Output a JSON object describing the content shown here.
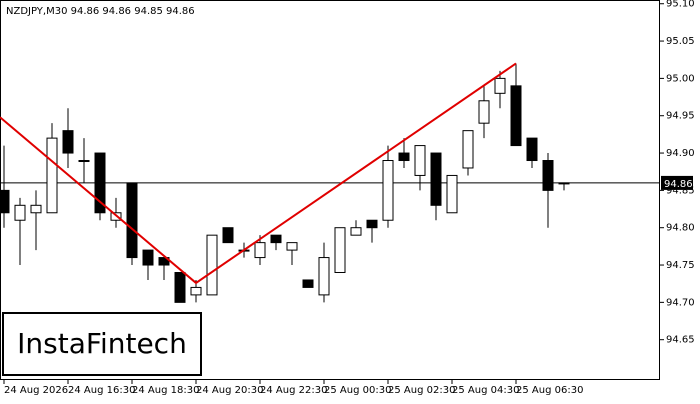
{
  "chart_data": {
    "type": "candlestick",
    "title": "NZDJPY,M30  94.86 94.86 94.85 94.86",
    "watermark": "InstaFintech",
    "categories": [
      "24 Aug 2026",
      null,
      null,
      null,
      "24 Aug 16:30",
      null,
      null,
      null,
      "24 Aug 18:30",
      null,
      null,
      null,
      "24 Aug 20:30",
      null,
      null,
      null,
      "24 Aug 22:30",
      null,
      null,
      null,
      "25 Aug 00:30",
      null,
      null,
      null,
      "25 Aug 02:30",
      null,
      null,
      null,
      "25 Aug 04:30",
      null,
      null,
      null,
      "25 Aug 06:30",
      null,
      null,
      null
    ],
    "open": [
      94.85,
      94.81,
      94.82,
      94.82,
      94.93,
      94.89,
      94.9,
      94.81,
      94.86,
      94.77,
      94.76,
      94.74,
      94.71,
      94.71,
      94.8,
      94.77,
      94.76,
      94.79,
      94.77,
      94.73,
      94.71,
      94.74,
      94.79,
      94.81,
      94.81,
      94.9,
      94.87,
      94.9,
      94.82,
      94.88,
      94.94,
      94.98,
      94.99,
      94.92,
      94.89,
      94.86
    ],
    "high": [
      94.91,
      94.84,
      94.85,
      94.94,
      94.96,
      94.92,
      94.9,
      94.84,
      94.86,
      94.77,
      94.76,
      94.74,
      94.73,
      94.79,
      94.8,
      94.78,
      94.79,
      94.79,
      94.78,
      94.73,
      94.78,
      94.8,
      94.81,
      94.81,
      94.91,
      94.92,
      94.91,
      94.9,
      94.87,
      94.93,
      94.99,
      95.01,
      95.02,
      94.92,
      94.9,
      94.86
    ],
    "low": [
      94.8,
      94.75,
      94.77,
      94.82,
      94.88,
      94.86,
      94.81,
      94.8,
      94.75,
      94.73,
      94.73,
      94.7,
      94.7,
      94.71,
      94.78,
      94.76,
      94.75,
      94.77,
      94.75,
      94.72,
      94.7,
      94.74,
      94.79,
      94.78,
      94.8,
      94.88,
      94.85,
      94.81,
      94.82,
      94.87,
      94.92,
      94.96,
      94.91,
      94.88,
      94.8,
      94.85
    ],
    "close": [
      94.82,
      94.83,
      94.83,
      94.92,
      94.9,
      94.89,
      94.82,
      94.82,
      94.76,
      94.75,
      94.75,
      94.7,
      94.72,
      94.79,
      94.78,
      94.77,
      94.78,
      94.78,
      94.78,
      94.72,
      94.76,
      94.8,
      94.8,
      94.8,
      94.89,
      94.89,
      94.91,
      94.83,
      94.87,
      94.93,
      94.97,
      95.0,
      94.91,
      94.89,
      94.85,
      94.86
    ],
    "up_color": "#ffffff",
    "down_color": "#000000",
    "current_price": 94.86,
    "pattern_line": {
      "color": "#e00000",
      "x": [
        -0.25,
        12,
        32
      ],
      "y": [
        94.948,
        94.726,
        95.02
      ]
    },
    "ylim": [
      94.596,
      95.105
    ],
    "yticks": [
      {
        "value": 95.1,
        "label": "95.10"
      },
      95.05,
      {
        "value": 95.0,
        "label": "95.00"
      },
      94.95,
      {
        "value": 94.9,
        "label": "94.90"
      },
      94.85,
      {
        "value": 94.8,
        "label": "94.80"
      },
      94.75,
      {
        "value": 94.7,
        "label": "94.70"
      },
      94.65
    ]
  }
}
